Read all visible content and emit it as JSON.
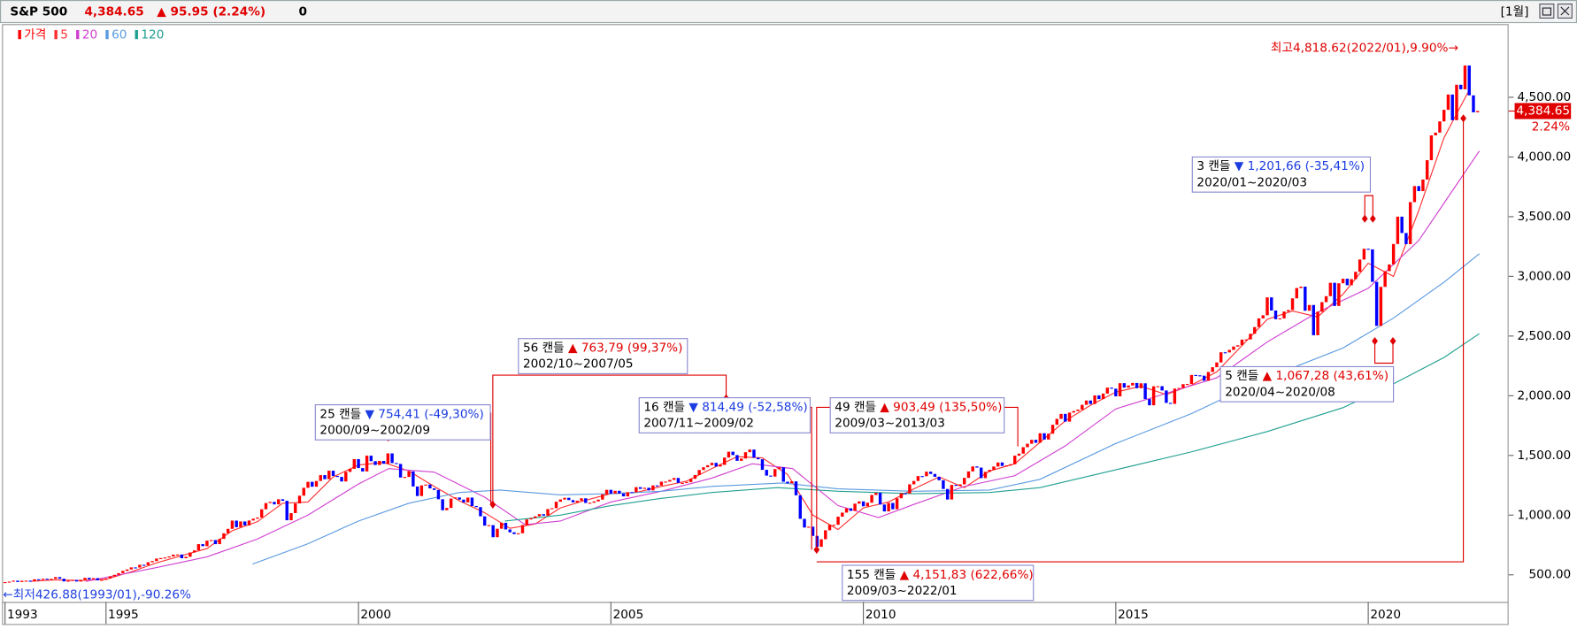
{
  "header": {
    "symbol": "S&P 500",
    "price": "4,384.65",
    "change": "▲ 95.95 (2.24%)",
    "volume": "0",
    "period": "[1월]"
  },
  "chart_data": {
    "type": "candlestick",
    "price": {
      "name": "가격",
      "color": "#ff0000",
      "down_color": "#0000ff",
      "years": [
        {
          "year": 1993,
          "closes": [
            439,
            443,
            451,
            440,
            450,
            451,
            448,
            463,
            458,
            467,
            462,
            466
          ]
        },
        {
          "year": 1994,
          "closes": [
            481,
            467,
            445,
            451,
            457,
            444,
            458,
            475,
            462,
            472,
            454,
            459
          ]
        },
        {
          "year": 1995,
          "closes": [
            470,
            487,
            500,
            514,
            533,
            545,
            562,
            561,
            584,
            581,
            605,
            615
          ]
        },
        {
          "year": 1996,
          "closes": [
            636,
            640,
            645,
            654,
            669,
            670,
            639,
            651,
            687,
            705,
            757,
            740
          ]
        },
        {
          "year": 1997,
          "closes": [
            786,
            791,
            757,
            801,
            848,
            885,
            954,
            899,
            947,
            914,
            955,
            970
          ]
        },
        {
          "year": 1998,
          "closes": [
            980,
            1049,
            1101,
            1111,
            1090,
            1133,
            1120,
            957,
            1017,
            1098,
            1163,
            1229
          ]
        },
        {
          "year": 1999,
          "closes": [
            1279,
            1238,
            1286,
            1335,
            1301,
            1372,
            1328,
            1320,
            1282,
            1362,
            1388,
            1469
          ]
        },
        {
          "year": 2000,
          "closes": [
            1394,
            1366,
            1498,
            1452,
            1420,
            1454,
            1430,
            1517,
            1436,
            1429,
            1315,
            1320
          ]
        },
        {
          "year": 2001,
          "closes": [
            1366,
            1240,
            1160,
            1249,
            1256,
            1224,
            1211,
            1133,
            1041,
            1060,
            1139,
            1148
          ]
        },
        {
          "year": 2002,
          "closes": [
            1130,
            1107,
            1147,
            1076,
            1067,
            990,
            912,
            916,
            815,
            886,
            936,
            880
          ]
        },
        {
          "year": 2003,
          "closes": [
            856,
            841,
            848,
            917,
            964,
            975,
            990,
            1008,
            996,
            1051,
            1058,
            1112
          ]
        },
        {
          "year": 2004,
          "closes": [
            1131,
            1145,
            1126,
            1107,
            1121,
            1141,
            1102,
            1104,
            1115,
            1130,
            1174,
            1212
          ]
        },
        {
          "year": 2005,
          "closes": [
            1181,
            1204,
            1181,
            1157,
            1192,
            1191,
            1234,
            1220,
            1229,
            1207,
            1249,
            1248
          ]
        },
        {
          "year": 2006,
          "closes": [
            1280,
            1281,
            1295,
            1311,
            1270,
            1270,
            1277,
            1304,
            1336,
            1378,
            1401,
            1418
          ]
        },
        {
          "year": 2007,
          "closes": [
            1438,
            1407,
            1421,
            1482,
            1531,
            1503,
            1455,
            1474,
            1527,
            1549,
            1481,
            1468
          ]
        },
        {
          "year": 2008,
          "closes": [
            1379,
            1331,
            1323,
            1386,
            1400,
            1280,
            1267,
            1283,
            1166,
            969,
            896,
            903
          ]
        },
        {
          "year": 2009,
          "closes": [
            826,
            735,
            798,
            873,
            919,
            919,
            987,
            1021,
            1057,
            1036,
            1096,
            1115
          ]
        },
        {
          "year": 2010,
          "closes": [
            1074,
            1104,
            1169,
            1187,
            1089,
            1031,
            1102,
            1049,
            1141,
            1183,
            1181,
            1258
          ]
        },
        {
          "year": 2011,
          "closes": [
            1286,
            1327,
            1326,
            1364,
            1345,
            1321,
            1292,
            1219,
            1131,
            1253,
            1247,
            1258
          ]
        },
        {
          "year": 2012,
          "closes": [
            1312,
            1366,
            1408,
            1398,
            1310,
            1362,
            1379,
            1407,
            1441,
            1412,
            1416,
            1426
          ]
        },
        {
          "year": 2013,
          "closes": [
            1498,
            1515,
            1569,
            1598,
            1631,
            1606,
            1686,
            1633,
            1682,
            1757,
            1806,
            1848
          ]
        },
        {
          "year": 2014,
          "closes": [
            1783,
            1859,
            1872,
            1884,
            1924,
            1960,
            1931,
            2003,
            1972,
            2018,
            2068,
            2059
          ]
        },
        {
          "year": 2015,
          "closes": [
            1995,
            2105,
            2068,
            2086,
            2107,
            2063,
            2104,
            1972,
            1920,
            2079,
            2080,
            2044
          ]
        },
        {
          "year": 2016,
          "closes": [
            1940,
            1932,
            2060,
            2065,
            2097,
            2099,
            2174,
            2171,
            2168,
            2126,
            2199,
            2239
          ]
        },
        {
          "year": 2017,
          "closes": [
            2279,
            2364,
            2363,
            2384,
            2412,
            2423,
            2470,
            2472,
            2519,
            2575,
            2648,
            2674
          ]
        },
        {
          "year": 2018,
          "closes": [
            2824,
            2714,
            2641,
            2648,
            2705,
            2718,
            2816,
            2902,
            2914,
            2712,
            2760,
            2507
          ]
        },
        {
          "year": 2019,
          "closes": [
            2704,
            2784,
            2834,
            2946,
            2752,
            2942,
            2980,
            2926,
            2977,
            3038,
            3141,
            3231
          ]
        },
        {
          "year": 2020,
          "closes": [
            3226,
            2954,
            2585,
            2912,
            3044,
            3100,
            3271,
            3500,
            3363,
            3270,
            3622,
            3756
          ]
        },
        {
          "year": 2021,
          "closes": [
            3714,
            3811,
            3973,
            4181,
            4204,
            4298,
            4395,
            4523,
            4308,
            4605,
            4567,
            4766
          ]
        },
        {
          "year": 2022,
          "closes": [
            4516,
            4374,
            4384.65
          ]
        }
      ]
    },
    "moving_averages": [
      {
        "name": "5",
        "color": "#ff3030",
        "x": [
          1993.5,
          1994,
          1994.5,
          1995,
          1995.5,
          1996,
          1996.5,
          1997,
          1997.5,
          1998,
          1998.5,
          1999,
          1999.5,
          2000,
          2000.5,
          2001,
          2001.5,
          2002,
          2002.5,
          2003,
          2003.5,
          2004,
          2004.5,
          2005,
          2005.5,
          2006,
          2006.5,
          2007,
          2007.5,
          2008,
          2008.5,
          2009,
          2009.5,
          2010,
          2010.5,
          2011,
          2011.5,
          2012,
          2012.5,
          2013,
          2013.5,
          2014,
          2014.5,
          2015,
          2015.5,
          2016,
          2016.5,
          2017,
          2017.5,
          2018,
          2018.5,
          2019,
          2019.5,
          2020,
          2020.5,
          2021,
          2021.5,
          2022
        ],
        "values": [
          445,
          458,
          452,
          462,
          525,
          600,
          660,
          720,
          870,
          945,
          1100,
          1110,
          1320,
          1420,
          1440,
          1370,
          1240,
          1120,
          1020,
          890,
          925,
          1060,
          1125,
          1180,
          1190,
          1240,
          1285,
          1390,
          1490,
          1480,
          1340,
          1000,
          880,
          1060,
          1110,
          1220,
          1320,
          1230,
          1370,
          1430,
          1610,
          1790,
          1920,
          2030,
          2080,
          2010,
          2090,
          2200,
          2420,
          2640,
          2710,
          2660,
          2850,
          3110,
          3000,
          3550,
          4160,
          4560
        ]
      },
      {
        "name": "20",
        "color": "#d040d0",
        "x": [
          1994.6,
          1996,
          1997,
          1998,
          1999,
          2000,
          2000.6,
          2001.5,
          2002.5,
          2003.3,
          2004,
          2005,
          2006,
          2007,
          2007.8,
          2008.6,
          2009.5,
          2010.3,
          2011,
          2012,
          2013,
          2014,
          2015,
          2016,
          2017,
          2018,
          2019,
          2020,
          2021,
          2022.2
        ],
        "values": [
          445,
          560,
          650,
          800,
          1000,
          1260,
          1390,
          1360,
          1150,
          920,
          950,
          1110,
          1200,
          1310,
          1430,
          1390,
          1080,
          980,
          1090,
          1240,
          1330,
          1580,
          1890,
          2020,
          2150,
          2450,
          2700,
          2900,
          3300,
          4050
        ]
      },
      {
        "name": "60",
        "color": "#5a9ae0",
        "x": [
          1997.9,
          1999,
          2000,
          2001,
          2002,
          2002.8,
          2004,
          2005,
          2006,
          2007,
          2008.4,
          2009.5,
          2011,
          2012.5,
          2013.5,
          2015,
          2016.5,
          2018,
          2019.5,
          2020.5,
          2021.5,
          2022.2
        ],
        "values": [
          590,
          760,
          950,
          1100,
          1190,
          1210,
          1170,
          1180,
          1200,
          1240,
          1270,
          1220,
          1200,
          1210,
          1300,
          1600,
          1850,
          2150,
          2400,
          2650,
          2950,
          3190
        ]
      },
      {
        "name": "120",
        "color": "#20a090",
        "x": [
          2002.9,
          2004,
          2005,
          2006,
          2007,
          2008.3,
          2009.5,
          2011,
          2012.5,
          2013.5,
          2015,
          2016.5,
          2018,
          2019.5,
          2020.5,
          2021.5,
          2022.2
        ],
        "values": [
          950,
          1000,
          1080,
          1140,
          1190,
          1230,
          1200,
          1180,
          1190,
          1230,
          1380,
          1530,
          1700,
          1900,
          2100,
          2320,
          2520
        ]
      }
    ],
    "xlim": [
      1992.96,
      2022.78
    ],
    "xticks": [
      1993,
      1995,
      2000,
      2005,
      2010,
      2015,
      2020
    ],
    "ylim": [
      273,
      5130
    ],
    "yticks": [
      {
        "value": 500,
        "label": "500.00"
      },
      {
        "value": 1000,
        "label": "1,000.00"
      },
      {
        "value": 1500,
        "label": "1,500.00"
      },
      {
        "value": 2000,
        "label": "2,000.00"
      },
      {
        "value": 2500,
        "label": "2,500.00"
      },
      {
        "value": 3000,
        "label": "3,000.00"
      },
      {
        "value": 3500,
        "label": "3,500.00"
      },
      {
        "value": 4000,
        "label": "4,000.00"
      },
      {
        "value": 4500,
        "label": "4,500.00"
      }
    ],
    "last_price": {
      "value": 4384.65,
      "label": "4,384.65",
      "change_label": "2.24%"
    },
    "high_label": "최고4,818.62(2022/01),9.90%→",
    "low_label": "←최저426.88(1993/01),-90.26%",
    "annotations": [
      {
        "count": "25 캔들",
        "change": "▼ 754,41 (-49,30%)",
        "direction": "down",
        "period": "2000/09~2002/09"
      },
      {
        "count": "56 캔들",
        "change": "▲ 763,79 (99,37%)",
        "direction": "up",
        "period": "2002/10~2007/05"
      },
      {
        "count": "16 캔들",
        "change": "▼ 814,49 (-52,58%)",
        "direction": "down",
        "period": "2007/11~2009/02"
      },
      {
        "count": "49 캔들",
        "change": "▲ 903,49 (135,50%)",
        "direction": "up",
        "period": "2009/03~2013/03"
      },
      {
        "count": "155 캔들",
        "change": "▲ 4,151,83 (622,66%)",
        "direction": "up",
        "period": "2009/03~2022/01"
      },
      {
        "count": "3 캔들",
        "change": "▼ 1,201,66 (-35,41%)",
        "direction": "down",
        "period": "2020/01~2020/03"
      },
      {
        "count": "5 캔들",
        "change": "▲ 1,067,28 (43,61%)",
        "direction": "up",
        "period": "2020/04~2020/08"
      }
    ]
  }
}
